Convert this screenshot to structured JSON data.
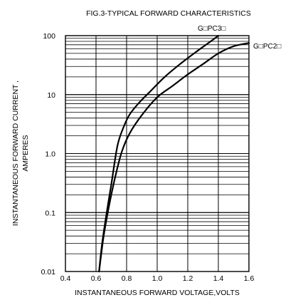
{
  "chart_data": {
    "type": "line",
    "title": "FIG.3-TYPICAL FORWARD CHARACTERISTICS",
    "xlabel": "INSTANTANEOUS FORWARD VOLTAGE,VOLTS",
    "ylabel_lines": [
      "INSTANTANEOUS  FORWARD  CURRENT ,",
      "AMPERES"
    ],
    "xlim": [
      0.4,
      1.6
    ],
    "ylim": [
      0.01,
      100
    ],
    "y_scale": "log",
    "grid": true,
    "x_ticks": [
      0.4,
      0.6,
      0.8,
      1.0,
      1.2,
      1.4,
      1.6
    ],
    "x_tick_labels": [
      "0.4",
      "0.6",
      "0.8",
      "1.0",
      "1.2",
      "1.4",
      "1.6"
    ],
    "y_ticks": [
      0.01,
      0.1,
      1.0,
      10,
      100
    ],
    "y_tick_labels": [
      "0.01",
      "0.1",
      "1.0",
      "10",
      "100"
    ],
    "series": [
      {
        "name": "G□PC3□",
        "x": [
          0.62,
          0.64,
          0.67,
          0.7,
          0.74,
          0.78,
          0.82,
          0.88,
          0.95,
          1.05,
          1.15,
          1.25,
          1.35,
          1.4
        ],
        "y": [
          0.01,
          0.03,
          0.1,
          0.3,
          1.35,
          2.8,
          4.6,
          7.2,
          11,
          20,
          33,
          52,
          80,
          100
        ]
      },
      {
        "name": "G□PC2□",
        "x": [
          0.62,
          0.65,
          0.69,
          0.73,
          0.77,
          0.82,
          0.9,
          1.0,
          1.1,
          1.2,
          1.3,
          1.4,
          1.5,
          1.6
        ],
        "y": [
          0.01,
          0.04,
          0.15,
          0.45,
          1.1,
          2.2,
          4.5,
          9.0,
          14,
          22,
          33,
          50,
          66,
          75
        ]
      }
    ]
  }
}
